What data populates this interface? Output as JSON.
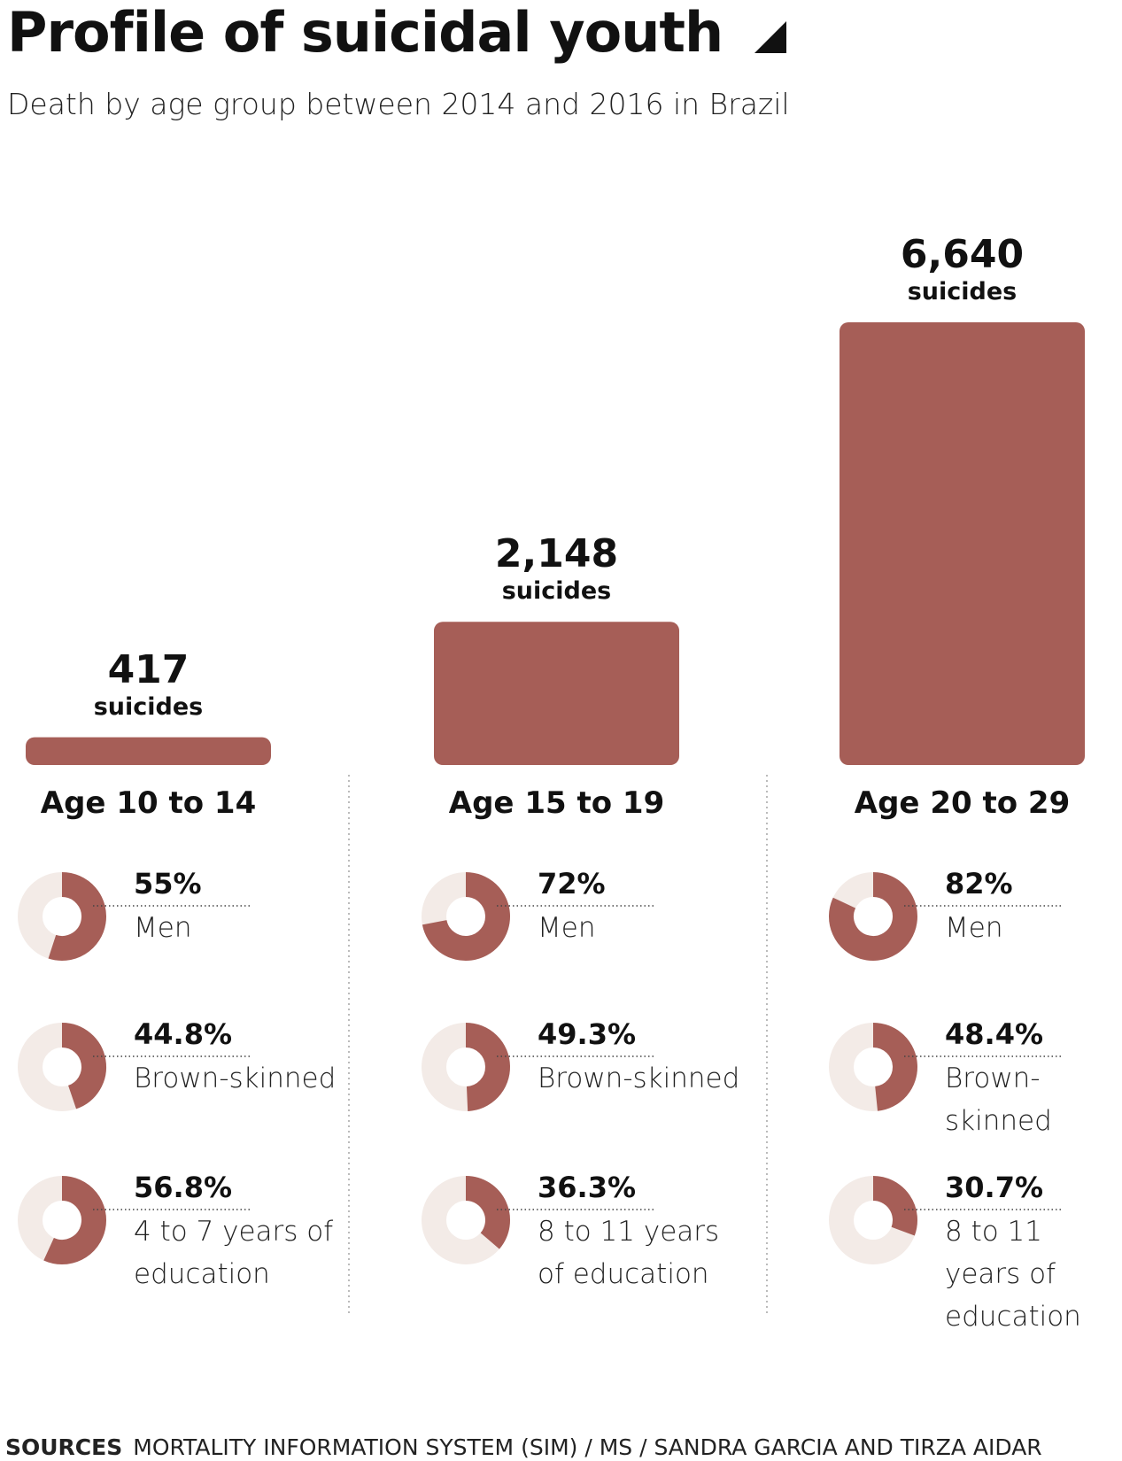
{
  "chart_data": [
    {
      "type": "bar",
      "title": "Profile of suicidal youth",
      "subtitle": "Death by age group between 2014 and 2016 in Brazil",
      "categories": [
        "Age 10 to 14",
        "Age 15 to 19",
        "Age 20 to 29"
      ],
      "values": [
        417,
        2148,
        6640
      ],
      "value_labels": [
        "417",
        "2,148",
        "6,640"
      ],
      "unit_label": "suicides",
      "color": "#a65e57"
    },
    {
      "type": "donut",
      "color": "#a65e57",
      "track_color": "#f3ebe7",
      "categories": [
        "Men",
        "Brown-skinned",
        "4 to 7 years of education"
      ],
      "values": [
        55,
        44.8,
        56.8
      ],
      "value_labels": [
        "55%",
        "44.8%",
        "56.8%"
      ]
    },
    {
      "type": "donut",
      "color": "#a65e57",
      "track_color": "#f3ebe7",
      "categories": [
        "Men",
        "Brown-skinned",
        "8 to 11 years of education"
      ],
      "values": [
        72,
        49.3,
        36.3
      ],
      "value_labels": [
        "72%",
        "49.3%",
        "36.3%"
      ]
    },
    {
      "type": "donut",
      "color": "#a65e57",
      "track_color": "#f3ebe7",
      "categories": [
        "Men",
        "Brown-skinned",
        "8 to 11 years of education"
      ],
      "values": [
        82,
        48.4,
        30.7
      ],
      "value_labels": [
        "82%",
        "48.4%",
        "30.7%"
      ]
    }
  ],
  "sources": {
    "label": "SOURCES",
    "text": "MORTALITY INFORMATION SYSTEM (SIM) / MS / SANDRA GARCIA AND TIRZA AIDAR"
  }
}
